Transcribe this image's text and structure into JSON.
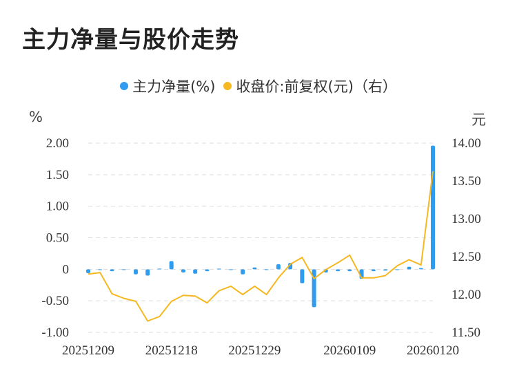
{
  "title": "主力净量与股价走势",
  "legend": {
    "series1": "主力净量(%)",
    "series2": "收盘价:前复权(元)（右）"
  },
  "units": {
    "left": "%",
    "right": "元"
  },
  "colors": {
    "bar": "#2f9cf0",
    "line": "#f5b820",
    "grid": "#dddddd"
  },
  "chart_data": {
    "type": "bar+line",
    "x": [
      "20251209",
      "20251210",
      "20251211",
      "20251212",
      "20251215",
      "20251216",
      "20251217",
      "20251218",
      "20251219",
      "20251222",
      "20251223",
      "20251224",
      "20251225",
      "20251226",
      "20251229",
      "20251230",
      "20251231",
      "20260102",
      "20260105",
      "20260106",
      "20260107",
      "20260108",
      "20260109",
      "20260112",
      "20260113",
      "20260114",
      "20260115",
      "20260116",
      "20260119",
      "20260120"
    ],
    "x_tick_labels": [
      "20251209",
      "20251218",
      "20251229",
      "20260109",
      "20260120"
    ],
    "series": [
      {
        "name": "主力净量(%)",
        "axis": "left",
        "kind": "bar",
        "values": [
          -0.06,
          0.0,
          -0.03,
          -0.01,
          -0.08,
          -0.1,
          0.01,
          0.13,
          -0.05,
          -0.07,
          -0.03,
          0.01,
          0.0,
          -0.08,
          0.03,
          0.0,
          0.08,
          0.1,
          -0.22,
          -0.6,
          -0.05,
          -0.03,
          -0.03,
          -0.15,
          -0.03,
          -0.02,
          0.0,
          0.04,
          0.02,
          1.96
        ]
      },
      {
        "name": "收盘价:前复权(元)（右）",
        "axis": "right",
        "kind": "line",
        "values": [
          12.27,
          12.29,
          12.01,
          11.95,
          11.91,
          11.65,
          11.71,
          11.91,
          11.99,
          11.98,
          11.89,
          12.05,
          12.11,
          12.0,
          12.11,
          12.0,
          12.22,
          12.4,
          12.49,
          12.21,
          12.33,
          12.42,
          12.52,
          12.22,
          12.22,
          12.25,
          12.38,
          12.46,
          12.39,
          13.63
        ]
      }
    ],
    "y_left": {
      "ticks": [
        "2.00",
        "1.50",
        "1.00",
        "0.50",
        "0",
        "-0.50",
        "-1.00"
      ],
      "range": [
        -1.0,
        2.0
      ]
    },
    "y_right": {
      "ticks": [
        "14.00",
        "13.50",
        "13.00",
        "12.50",
        "12.00",
        "11.50"
      ],
      "range": [
        11.5,
        14.0
      ]
    },
    "grid": true,
    "legend_position": "top-center"
  }
}
